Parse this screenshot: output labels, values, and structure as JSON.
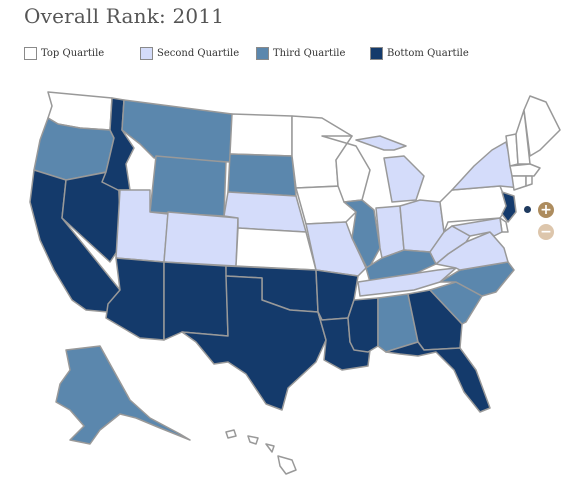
{
  "title": "Overall Rank: 2011",
  "legend": [
    {
      "label": "Top Quartile",
      "color": "#ffffff"
    },
    {
      "label": "Second Quartile",
      "color": "#d4dcfa"
    },
    {
      "label": "Third Quartile",
      "color": "#5b87ad"
    },
    {
      "label": "Bottom Quartile",
      "color": "#143a6b"
    }
  ],
  "colors": {
    "top": "#ffffff",
    "second": "#d4dcfa",
    "third": "#5b87ad",
    "bottom": "#143a6b",
    "border": "#999999",
    "zoom_in": "#ad8c5e",
    "zoom_out": "#ddc6ac"
  },
  "controls": {
    "zoom_in_label": "+",
    "zoom_out_label": "−"
  },
  "states": {
    "WA": "top",
    "OR": "third",
    "CA": "bottom",
    "NV": "bottom",
    "ID": "bottom",
    "MT": "third",
    "WY": "third",
    "UT": "second",
    "CO": "second",
    "AZ": "bottom",
    "NM": "bottom",
    "ND": "top",
    "SD": "third",
    "NE": "second",
    "KS": "top",
    "OK": "bottom",
    "TX": "bottom",
    "MN": "top",
    "IA": "top",
    "MO": "second",
    "AR": "bottom",
    "LA": "bottom",
    "WI": "top",
    "IL": "third",
    "MI": "second",
    "IN": "second",
    "OH": "second",
    "KY": "third",
    "TN": "second",
    "MS": "bottom",
    "AL": "third",
    "GA": "bottom",
    "FL": "bottom",
    "SC": "third",
    "NC": "third",
    "VA": "second",
    "WV": "second",
    "PA": "top",
    "NY": "second",
    "VT": "top",
    "NH": "top",
    "ME": "top",
    "MA": "top",
    "CT": "top",
    "RI": "top",
    "NJ": "bottom",
    "DE": "top",
    "MD": "second",
    "AK": "third",
    "HI": "top"
  }
}
